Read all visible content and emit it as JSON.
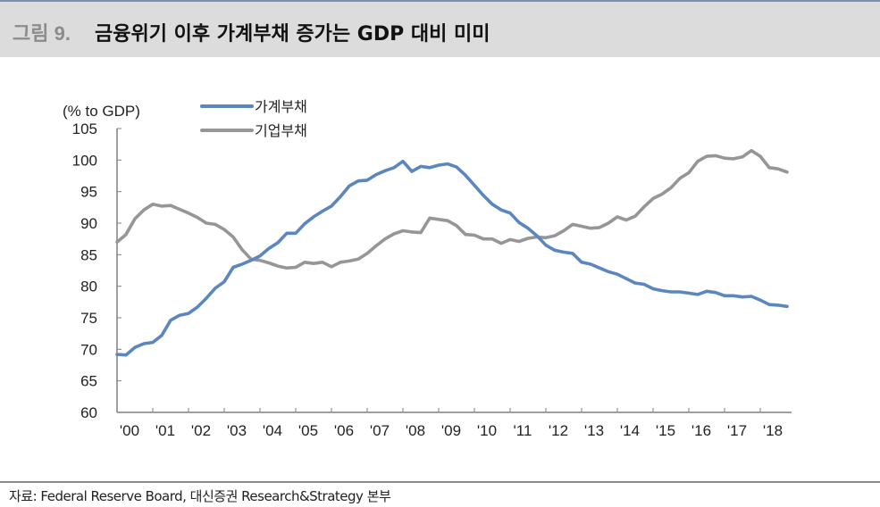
{
  "header": {
    "figure_number": "그림 9.",
    "title": "금융위기 이후 가계부채 증가는 GDP 대비 미미"
  },
  "footer": {
    "source": "자료: Federal Reserve Board, 대신증권 Research&Strategy 본부"
  },
  "colors": {
    "household": "#5b86c0",
    "corporate": "#969696",
    "axis": "#808080"
  },
  "chart_data": {
    "type": "line",
    "title": "금융위기 이후 가계부채 증가는 GDP 대비 미미",
    "ylabel": "(% to GDP)",
    "xlabel": "",
    "ylim": [
      60,
      105
    ],
    "yticks": [
      "60",
      "65",
      "70",
      "75",
      "80",
      "85",
      "90",
      "95",
      "100",
      "105"
    ],
    "ytick_values": [
      60,
      65,
      70,
      75,
      80,
      85,
      90,
      95,
      100,
      105
    ],
    "xlim": [
      2000,
      2019
    ],
    "xticks": [
      "'00",
      "'01",
      "'02",
      "'03",
      "'04",
      "'05",
      "'06",
      "'07",
      "'08",
      "'09",
      "'10",
      "'11",
      "'12",
      "'13",
      "'14",
      "'15",
      "'16",
      "'17",
      "'18"
    ],
    "xtick_values": [
      2000,
      2001,
      2002,
      2003,
      2004,
      2005,
      2006,
      2007,
      2008,
      2009,
      2010,
      2011,
      2012,
      2013,
      2014,
      2015,
      2016,
      2017,
      2018
    ],
    "grid": false,
    "legend": "top-center",
    "x_start": 2000,
    "x_step": 0.25,
    "series": [
      {
        "name": "가계부채",
        "values": [
          69.2,
          69.1,
          70.3,
          70.9,
          71.1,
          72.2,
          74.6,
          75.4,
          75.7,
          76.7,
          78.1,
          79.7,
          80.7,
          83.0,
          83.5,
          84.1,
          84.8,
          86.0,
          86.9,
          88.4,
          88.4,
          89.9,
          91.0,
          91.9,
          92.7,
          94.2,
          95.9,
          96.7,
          96.8,
          97.7,
          98.3,
          98.8,
          99.8,
          98.2,
          99.0,
          98.8,
          99.2,
          99.4,
          98.9,
          97.6,
          96.0,
          94.4,
          93.0,
          92.1,
          91.6,
          90.1,
          89.2,
          88.0,
          86.5,
          85.7,
          85.4,
          85.2,
          83.8,
          83.5,
          82.9,
          82.3,
          81.9,
          81.2,
          80.5,
          80.3,
          79.6,
          79.3,
          79.1,
          79.1,
          78.9,
          78.7,
          79.2,
          79.0,
          78.5,
          78.5,
          78.3,
          78.4,
          77.8,
          77.1,
          77.0,
          76.8
        ]
      },
      {
        "name": "기업부채",
        "values": [
          87.0,
          88.2,
          90.7,
          92.1,
          93.0,
          92.7,
          92.8,
          92.2,
          91.6,
          90.9,
          90.0,
          89.8,
          89.0,
          87.8,
          85.8,
          84.3,
          84.1,
          83.7,
          83.2,
          82.9,
          83.0,
          83.8,
          83.6,
          83.8,
          83.1,
          83.8,
          84.0,
          84.3,
          85.2,
          86.4,
          87.5,
          88.3,
          88.8,
          88.6,
          88.5,
          90.8,
          90.6,
          90.4,
          89.6,
          88.2,
          88.1,
          87.5,
          87.5,
          86.8,
          87.4,
          87.1,
          87.6,
          87.8,
          87.7,
          88.0,
          88.8,
          89.8,
          89.5,
          89.2,
          89.3,
          90.0,
          91.0,
          90.5,
          91.1,
          92.6,
          93.9,
          94.6,
          95.6,
          97.1,
          98.0,
          99.8,
          100.6,
          100.7,
          100.3,
          100.2,
          100.5,
          101.5,
          100.6,
          98.8,
          98.6,
          98.1
        ]
      }
    ]
  }
}
